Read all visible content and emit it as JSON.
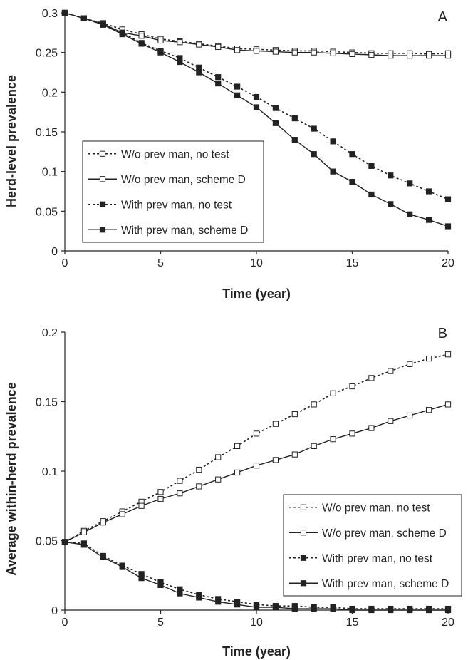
{
  "chart_data": [
    {
      "type": "line",
      "panel_label": "A",
      "xlabel": "Time (year)",
      "ylabel": "Herd-level prevalence",
      "xlim": [
        0,
        20
      ],
      "ylim": [
        0,
        0.3
      ],
      "xticks": [
        "0",
        "5",
        "10",
        "15",
        "20"
      ],
      "yticks": [
        "0",
        "0.05",
        "0.1",
        "0.15",
        "0.2",
        "0.25",
        "0.3"
      ],
      "grid": false,
      "legend_position": "center-left",
      "x": [
        0,
        1,
        2,
        3,
        4,
        5,
        6,
        7,
        8,
        9,
        10,
        11,
        12,
        13,
        14,
        15,
        16,
        17,
        18,
        19,
        20
      ],
      "series": [
        {
          "name": "W/o prev man, no test",
          "line": "dashed",
          "marker": "open-square",
          "values": [
            0.3,
            0.293,
            0.287,
            0.279,
            0.273,
            0.267,
            0.264,
            0.261,
            0.258,
            0.255,
            0.254,
            0.253,
            0.252,
            0.252,
            0.251,
            0.25,
            0.249,
            0.249,
            0.249,
            0.248,
            0.249
          ]
        },
        {
          "name": "W/o prev man, scheme D",
          "line": "solid",
          "marker": "open-square",
          "values": [
            0.3,
            0.293,
            0.286,
            0.275,
            0.271,
            0.265,
            0.263,
            0.26,
            0.257,
            0.253,
            0.252,
            0.251,
            0.25,
            0.25,
            0.249,
            0.248,
            0.247,
            0.246,
            0.246,
            0.246,
            0.246
          ]
        },
        {
          "name": "With prev man, no test",
          "line": "dashed",
          "marker": "filled-square",
          "values": [
            0.3,
            0.293,
            0.285,
            0.275,
            0.262,
            0.252,
            0.243,
            0.231,
            0.219,
            0.207,
            0.194,
            0.18,
            0.167,
            0.154,
            0.138,
            0.122,
            0.107,
            0.095,
            0.085,
            0.075,
            0.065
          ]
        },
        {
          "name": "With prev man, scheme D",
          "line": "solid",
          "marker": "filled-square",
          "values": [
            0.3,
            0.293,
            0.285,
            0.273,
            0.261,
            0.25,
            0.238,
            0.225,
            0.211,
            0.196,
            0.181,
            0.161,
            0.14,
            0.122,
            0.1,
            0.087,
            0.071,
            0.059,
            0.046,
            0.039,
            0.031
          ]
        }
      ]
    },
    {
      "type": "line",
      "panel_label": "B",
      "xlabel": "Time (year)",
      "ylabel": "Average within-herd prevalence",
      "xlim": [
        0,
        20
      ],
      "ylim": [
        0,
        0.2
      ],
      "xticks": [
        "0",
        "5",
        "10",
        "15",
        "20"
      ],
      "yticks": [
        "0",
        "0.05",
        "0.1",
        "0.15",
        "0.2"
      ],
      "grid": false,
      "legend_position": "bottom-right",
      "x": [
        0,
        1,
        2,
        3,
        4,
        5,
        6,
        7,
        8,
        9,
        10,
        11,
        12,
        13,
        14,
        15,
        16,
        17,
        18,
        19,
        20
      ],
      "series": [
        {
          "name": "W/o prev man, no test",
          "line": "dashed",
          "marker": "open-square",
          "values": [
            0.049,
            0.057,
            0.064,
            0.071,
            0.078,
            0.085,
            0.093,
            0.101,
            0.11,
            0.118,
            0.127,
            0.134,
            0.141,
            0.148,
            0.156,
            0.161,
            0.167,
            0.172,
            0.177,
            0.181,
            0.184
          ]
        },
        {
          "name": "W/o prev man, scheme D",
          "line": "solid",
          "marker": "open-square",
          "values": [
            0.049,
            0.056,
            0.063,
            0.069,
            0.075,
            0.08,
            0.084,
            0.089,
            0.094,
            0.099,
            0.104,
            0.108,
            0.112,
            0.118,
            0.123,
            0.127,
            0.131,
            0.136,
            0.14,
            0.144,
            0.148
          ]
        },
        {
          "name": "With prev man, no test",
          "line": "dashed",
          "marker": "filled-square",
          "values": [
            0.049,
            0.048,
            0.039,
            0.032,
            0.026,
            0.02,
            0.015,
            0.011,
            0.008,
            0.006,
            0.004,
            0.003,
            0.003,
            0.002,
            0.002,
            0.001,
            0.001,
            0.001,
            0.001,
            0.001,
            0.001
          ]
        },
        {
          "name": "With prev man, scheme D",
          "line": "solid",
          "marker": "filled-square",
          "values": [
            0.049,
            0.047,
            0.038,
            0.031,
            0.023,
            0.018,
            0.012,
            0.009,
            0.006,
            0.004,
            0.002,
            0.002,
            0.001,
            0.001,
            0.001,
            0.0,
            0.0,
            0.0,
            0.0,
            0.0,
            0.0
          ]
        }
      ]
    }
  ]
}
